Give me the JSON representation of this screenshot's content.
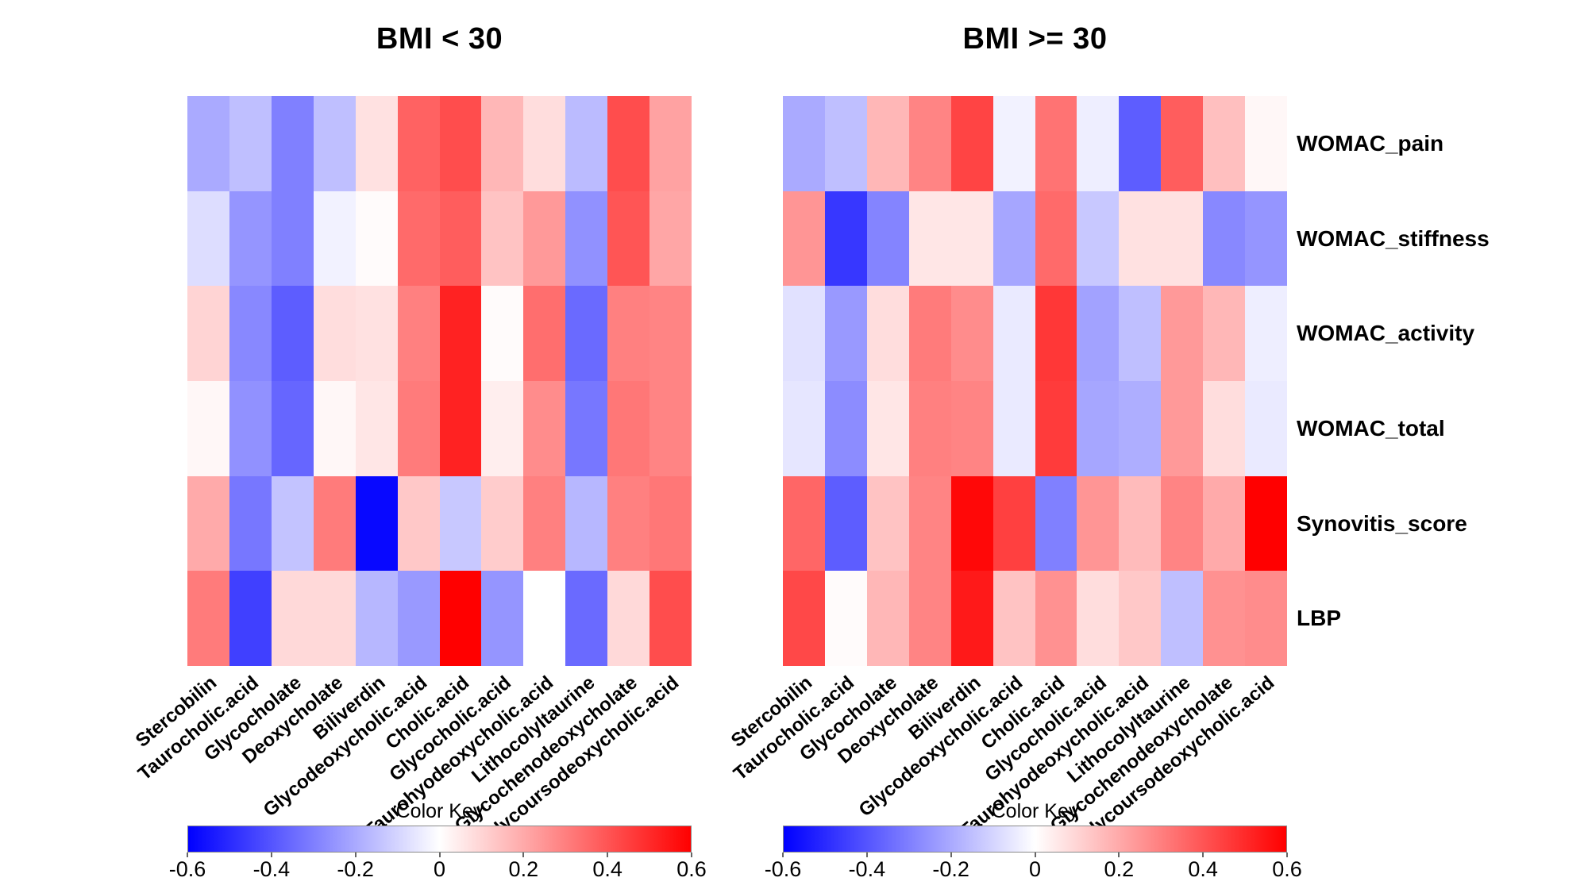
{
  "chart_data": [
    {
      "type": "heatmap",
      "title": "BMI < 30",
      "legend_title": "Color Key",
      "legend_ticks": [
        -0.6,
        -0.4,
        -0.2,
        0,
        0.2,
        0.4,
        0.6
      ],
      "legend_tick_labels": [
        "-0.6",
        "-0.4",
        "-0.2",
        "0",
        "0.2",
        "0.4",
        "0.6"
      ],
      "colormap": {
        "min": -0.6,
        "mid": 0,
        "max": 0.6,
        "min_color": "#0000ff",
        "mid_color": "#ffffff",
        "max_color": "#ff0000"
      },
      "columns": [
        "Stercobilin",
        "Taurocholic.acid",
        "Glycocholate",
        "Deoxycholate",
        "Biliverdin",
        "Glycodeoxycholic.acid",
        "Cholic.acid",
        "Glycocholic.acid",
        "Taurohyodeoxycholic.acid",
        "Lithocolyltaurine",
        "Glycochenodeoxycholate",
        "Glycoursodeoxycholic.acid"
      ],
      "rows": [
        "WOMAC_pain",
        "WOMAC_stiffness",
        "WOMAC_activity",
        "WOMAC_total",
        "Synovitis_score",
        "LBP"
      ],
      "values": [
        [
          -0.2,
          -0.15,
          -0.3,
          -0.15,
          0.07,
          0.37,
          0.42,
          0.17,
          0.08,
          -0.16,
          0.42,
          0.22
        ],
        [
          -0.08,
          -0.25,
          -0.3,
          -0.03,
          0.01,
          0.35,
          0.38,
          0.14,
          0.24,
          -0.26,
          0.4,
          0.21
        ],
        [
          0.1,
          -0.28,
          -0.38,
          0.08,
          0.07,
          0.3,
          0.52,
          0.01,
          0.34,
          -0.35,
          0.3,
          0.29
        ],
        [
          0.02,
          -0.26,
          -0.36,
          0.02,
          0.06,
          0.31,
          0.52,
          0.04,
          0.27,
          -0.32,
          0.32,
          0.29
        ],
        [
          0.2,
          -0.32,
          -0.14,
          0.31,
          -0.58,
          0.13,
          -0.13,
          0.12,
          0.3,
          -0.17,
          0.3,
          0.32
        ],
        [
          0.31,
          -0.45,
          0.09,
          0.09,
          -0.17,
          -0.24,
          0.6,
          -0.25,
          0.0,
          -0.35,
          0.09,
          0.42
        ]
      ]
    },
    {
      "type": "heatmap",
      "title": "BMI >= 30",
      "legend_title": "Color Key",
      "legend_ticks": [
        -0.6,
        -0.4,
        -0.2,
        0,
        0.2,
        0.4,
        0.6
      ],
      "legend_tick_labels": [
        "-0.6",
        "-0.4",
        "-0.2",
        "0",
        "0.2",
        "0.4",
        "0.6"
      ],
      "colormap": {
        "min": -0.6,
        "mid": 0,
        "max": 0.6,
        "min_color": "#0000ff",
        "mid_color": "#ffffff",
        "max_color": "#ff0000"
      },
      "columns": [
        "Stercobilin",
        "Taurocholic.acid",
        "Glycocholate",
        "Deoxycholate",
        "Biliverdin",
        "Glycodeoxycholic.acid",
        "Cholic.acid",
        "Glycocholic.acid",
        "Taurohyodeoxycholic.acid",
        "Lithocolyltaurine",
        "Glycochenodeoxycholate",
        "Glycoursodeoxycholic.acid"
      ],
      "rows": [
        "WOMAC_pain",
        "WOMAC_stiffness",
        "WOMAC_activity",
        "WOMAC_total",
        "Synovitis_score",
        "LBP"
      ],
      "values": [
        [
          -0.2,
          -0.15,
          0.17,
          0.29,
          0.44,
          -0.03,
          0.33,
          -0.04,
          -0.38,
          0.38,
          0.15,
          0.02
        ],
        [
          0.25,
          -0.47,
          -0.29,
          0.06,
          0.06,
          -0.21,
          0.35,
          -0.13,
          0.07,
          0.07,
          -0.28,
          -0.25
        ],
        [
          -0.07,
          -0.24,
          0.08,
          0.31,
          0.27,
          -0.05,
          0.47,
          -0.22,
          -0.15,
          0.24,
          0.17,
          -0.04
        ],
        [
          -0.06,
          -0.27,
          0.06,
          0.3,
          0.29,
          -0.05,
          0.46,
          -0.21,
          -0.19,
          0.24,
          0.08,
          -0.05
        ],
        [
          0.36,
          -0.38,
          0.14,
          0.29,
          0.58,
          0.45,
          -0.3,
          0.25,
          0.16,
          0.29,
          0.2,
          0.6
        ],
        [
          0.43,
          0.01,
          0.17,
          0.29,
          0.54,
          0.14,
          0.26,
          0.08,
          0.13,
          -0.15,
          0.26,
          0.27
        ]
      ]
    }
  ]
}
